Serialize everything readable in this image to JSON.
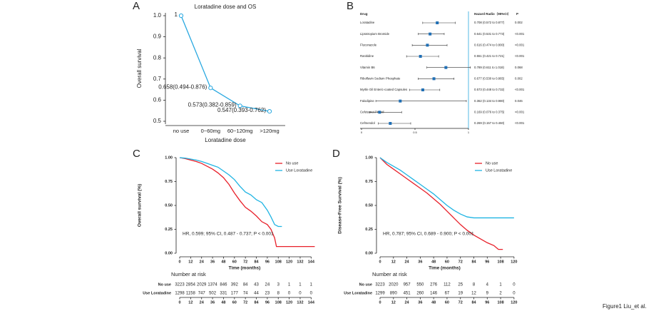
{
  "chart_data": [
    {
      "type": "line",
      "panel": "A",
      "title": "Loratadine dose and OS",
      "x_label": "Loratadine dose",
      "y_label": "Overall survival",
      "categories": [
        "no use",
        "0~60mg",
        "60~120mg",
        ">120mg"
      ],
      "values": [
        1,
        0.658,
        0.573,
        0.547
      ],
      "value_labels": [
        "1",
        "0.658(0.494-0.876)",
        "0.573(0.382-0.859)",
        "0.547(0.393-0.762)"
      ],
      "color": "#29a8e0",
      "ylim": [
        0.5,
        1.0
      ],
      "yticks": [
        {
          "value": 1,
          "label": "1.0"
        },
        0.9,
        0.8,
        0.7,
        0.6,
        0.5
      ]
    },
    {
      "type": "forest",
      "panel": "B",
      "columns": [
        "Drug",
        "Hazard Radio（95%CI）",
        "P"
      ],
      "categories": [
        "Loratadine",
        "Lipratropium Bromide",
        "Fluconazole",
        "Ranitidine",
        "Vitamin B6",
        "Riboflavin Sodium Phosphate",
        "Myrtle Oil Enteric-coated Capsules",
        "Falodipine",
        "Cefetamet Pivoxil",
        "Cefmendol"
      ],
      "values": [
        0.708,
        0.641,
        0.616,
        0.551,
        0.789,
        0.677,
        0.573,
        0.362,
        0.169,
        0.269
      ],
      "lower": [
        0.572,
        0.531,
        0.474,
        0.421,
        0.611,
        0.53,
        0.448,
        0.134,
        0.076,
        0.157
      ],
      "upper": [
        0.877,
        0.773,
        0.8,
        0.721,
        1.018,
        0.865,
        0.732,
        0.98,
        0.375,
        0.46
      ],
      "value_labels": [
        "0.708 (0.572 to 0.877)",
        "0.641 (0.531 to 0.773)",
        "0.616 (0.474 to 0.800)",
        "0.551 (0.421 to 0.721)",
        "0.789 (0.611 to 1.018)",
        "0.677 (0.530 to 0.865)",
        "0.573 (0.448 to 0.732)",
        "0.362 (0.134 to 0.980)",
        "0.169 (0.076 to 0.375)",
        "0.269 (0.157 to 0.460)"
      ],
      "p_labels": [
        "0.002",
        "<0.001",
        "<0.001",
        "<0.001",
        "0.068",
        "0.002",
        "<0.001",
        "0.046",
        "<0.001",
        "<0.001"
      ],
      "color": "#1f6fb5",
      "reference_color": "#29a8e0",
      "xlim": [
        0,
        1
      ],
      "xticks": [
        0,
        0.5,
        1
      ]
    },
    {
      "type": "survival",
      "panel": "C",
      "x_label": "Time (months)",
      "y_label": "Overall survival (%)",
      "annotation": "HR, 0.599; 95% CI, 0.487 - 0.737; P < 0.001",
      "xlim": [
        0,
        150
      ],
      "xticks": [
        0,
        12,
        24,
        36,
        48,
        60,
        72,
        84,
        96,
        108,
        120,
        132,
        144
      ],
      "ylim": [
        0,
        1
      ],
      "yticks": [
        {
          "value": 1,
          "label": "1.00"
        },
        0.75,
        {
          "value": 0.5,
          "label": "0.50"
        },
        0.25,
        {
          "value": 0,
          "label": "0.00"
        }
      ],
      "series": [
        {
          "name": "No use",
          "color": "#e8202a",
          "x": [
            0,
            6,
            12,
            18,
            24,
            30,
            36,
            42,
            48,
            54,
            60,
            66,
            72,
            78,
            84,
            90,
            96,
            100,
            104,
            106,
            148
          ],
          "values": [
            1,
            0.99,
            0.975,
            0.96,
            0.94,
            0.91,
            0.88,
            0.84,
            0.79,
            0.72,
            0.63,
            0.55,
            0.48,
            0.44,
            0.39,
            0.33,
            0.3,
            0.25,
            0.16,
            0.07,
            0.07
          ]
        },
        {
          "name": "Use Loratadine",
          "color": "#1fb4e3",
          "x": [
            0,
            6,
            12,
            18,
            24,
            30,
            36,
            42,
            48,
            54,
            60,
            66,
            72,
            78,
            84,
            90,
            96,
            100,
            104,
            108,
            112
          ],
          "values": [
            1,
            0.995,
            0.985,
            0.975,
            0.96,
            0.94,
            0.92,
            0.9,
            0.86,
            0.82,
            0.77,
            0.7,
            0.64,
            0.61,
            0.56,
            0.53,
            0.45,
            0.38,
            0.3,
            0.28,
            0.28
          ]
        }
      ],
      "risk_table": {
        "title": "Number at risk",
        "rows": [
          {
            "name": "No use",
            "values": [
              3223,
              2854,
              2029,
              1374,
              846,
              392,
              84,
              43,
              24,
              3,
              1,
              1,
              1
            ]
          },
          {
            "name": "Use Loratadine",
            "values": [
              1298,
              1158,
              747,
              502,
              331,
              177,
              74,
              44,
              23,
              8,
              0,
              0,
              0
            ]
          }
        ]
      }
    },
    {
      "type": "survival",
      "panel": "D",
      "x_label": "Time (months)",
      "y_label": "Disease-Free Survival (%)",
      "annotation": "HR, 0.787; 95% CI, 0.689 - 0.900; P < 0.001",
      "xlim": [
        0,
        122
      ],
      "xticks": [
        0,
        12,
        24,
        36,
        48,
        60,
        72,
        84,
        96,
        108,
        120
      ],
      "ylim": [
        0,
        1
      ],
      "yticks": [
        {
          "value": 1,
          "label": "1.00"
        },
        0.75,
        {
          "value": 0.5,
          "label": "0.50"
        },
        0.25,
        {
          "value": 0,
          "label": "0.00"
        }
      ],
      "series": [
        {
          "name": "No use",
          "color": "#e8202a",
          "x": [
            0,
            6,
            12,
            18,
            24,
            30,
            36,
            42,
            48,
            54,
            60,
            66,
            72,
            78,
            84,
            90,
            96,
            102,
            106,
            110
          ],
          "values": [
            1,
            0.93,
            0.88,
            0.83,
            0.78,
            0.73,
            0.68,
            0.63,
            0.57,
            0.51,
            0.44,
            0.37,
            0.3,
            0.24,
            0.19,
            0.15,
            0.11,
            0.08,
            0.04,
            0.04
          ]
        },
        {
          "name": "Use Loratadine",
          "color": "#1fb4e3",
          "x": [
            0,
            6,
            12,
            18,
            24,
            30,
            36,
            42,
            48,
            54,
            60,
            66,
            72,
            78,
            84,
            96,
            108,
            120
          ],
          "values": [
            1,
            0.95,
            0.91,
            0.87,
            0.82,
            0.77,
            0.72,
            0.67,
            0.62,
            0.56,
            0.5,
            0.45,
            0.41,
            0.38,
            0.37,
            0.37,
            0.37,
            0.37
          ]
        }
      ],
      "risk_table": {
        "title": "Number at risk",
        "rows": [
          {
            "name": "No use",
            "values": [
              3223,
              2020,
              957,
              550,
              276,
              112,
              25,
              8,
              4,
              1,
              0
            ]
          },
          {
            "name": "Use Loratadine",
            "values": [
              1299,
              890,
              451,
              260,
              146,
              67,
              19,
              12,
              9,
              2,
              0
            ]
          }
        ]
      }
    }
  ],
  "caption": "Figure1 Liu_et al."
}
